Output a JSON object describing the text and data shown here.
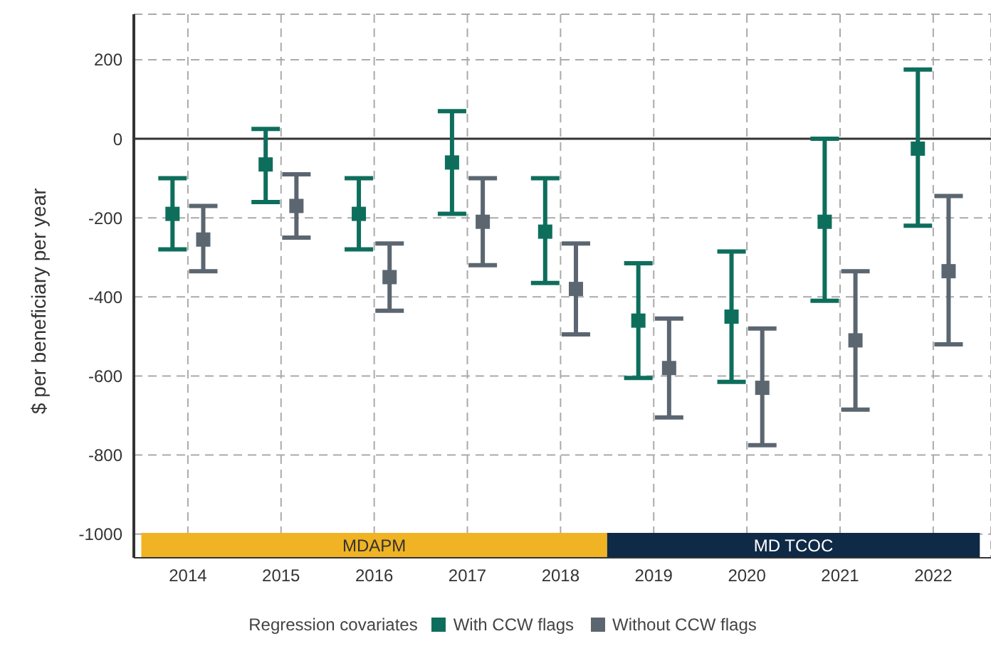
{
  "chart_data": {
    "type": "scatter",
    "ylabel": "$ per beneficiary per year",
    "legend_title": "Regression covariates",
    "categories": [
      "2014",
      "2015",
      "2016",
      "2017",
      "2018",
      "2019",
      "2020",
      "2021",
      "2022"
    ],
    "series": [
      {
        "name": "With CCW flags",
        "color": "#0e6e5c",
        "values": [
          -190,
          -65,
          -190,
          -60,
          -235,
          -460,
          -450,
          -210,
          -25
        ],
        "errors": [
          [
            -280,
            -100
          ],
          [
            -160,
            25
          ],
          [
            -280,
            -100
          ],
          [
            -190,
            70
          ],
          [
            -365,
            -100
          ],
          [
            -605,
            -315
          ],
          [
            -615,
            -285
          ],
          [
            -410,
            0
          ],
          [
            -220,
            175
          ]
        ]
      },
      {
        "name": "Without CCW flags",
        "color": "#5b6670",
        "values": [
          -255,
          -170,
          -350,
          -210,
          -380,
          -580,
          -630,
          -510,
          -335
        ],
        "errors": [
          [
            -335,
            -170
          ],
          [
            -250,
            -90
          ],
          [
            -435,
            -265
          ],
          [
            -320,
            -100
          ],
          [
            -495,
            -265
          ],
          [
            -705,
            -455
          ],
          [
            -775,
            -480
          ],
          [
            -685,
            -335
          ],
          [
            -520,
            -145
          ]
        ]
      }
    ],
    "ylim": [
      -1060,
      315
    ],
    "yticks": [
      -1000,
      -800,
      -600,
      -400,
      -200,
      0,
      200
    ],
    "grid": true,
    "marker": "square",
    "legend": "bottom",
    "ref_lines": [
      {
        "axis": "y",
        "value": 0,
        "color": "#333333"
      }
    ],
    "bands": [
      {
        "axis": "x",
        "from": "2014",
        "to": "2018",
        "label": "MDAPM",
        "color": "#f0b323"
      },
      {
        "axis": "x",
        "from": "2019",
        "to": "2022",
        "label": "MD TCOC",
        "color": "#0f2a47"
      }
    ]
  }
}
